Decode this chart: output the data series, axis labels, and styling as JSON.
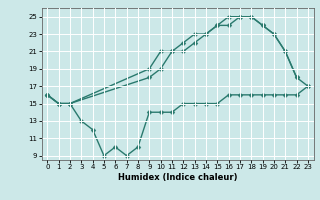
{
  "title": "",
  "xlabel": "Humidex (Indice chaleur)",
  "xlim": [
    -0.5,
    23.5
  ],
  "ylim": [
    8.5,
    26
  ],
  "xticks": [
    0,
    1,
    2,
    3,
    4,
    5,
    6,
    7,
    8,
    9,
    10,
    11,
    12,
    13,
    14,
    15,
    16,
    17,
    18,
    19,
    20,
    21,
    22,
    23
  ],
  "yticks": [
    9,
    11,
    13,
    15,
    17,
    19,
    21,
    23,
    25
  ],
  "bg_color": "#cce8e8",
  "grid_color": "#ffffff",
  "line_color": "#2a7a6e",
  "line1_x": [
    0,
    1,
    2,
    9,
    10,
    11,
    12,
    13,
    14,
    15,
    16,
    17,
    18,
    19,
    20,
    21,
    22
  ],
  "line1_y": [
    16,
    15,
    15,
    19,
    21,
    21,
    22,
    23,
    23,
    24,
    24,
    25,
    25,
    24,
    23,
    21,
    18
  ],
  "line2_x": [
    0,
    1,
    2,
    9,
    10,
    11,
    12,
    13,
    14,
    15,
    16,
    17,
    18,
    19,
    20,
    21,
    22,
    23
  ],
  "line2_y": [
    16,
    15,
    15,
    18,
    19,
    21,
    21,
    22,
    23,
    24,
    25,
    25,
    25,
    24,
    23,
    21,
    18,
    17
  ],
  "line3_x": [
    0,
    1,
    2,
    3,
    4,
    5,
    6,
    7,
    8,
    9,
    10,
    11,
    12,
    13,
    14,
    15,
    16,
    17,
    18,
    19,
    20,
    21,
    22,
    23
  ],
  "line3_y": [
    16,
    15,
    15,
    13,
    12,
    9,
    10,
    9,
    10,
    14,
    14,
    14,
    15,
    15,
    15,
    15,
    16,
    16,
    16,
    16,
    16,
    16,
    16,
    17
  ],
  "markersize": 2.5,
  "linewidth": 1.0
}
